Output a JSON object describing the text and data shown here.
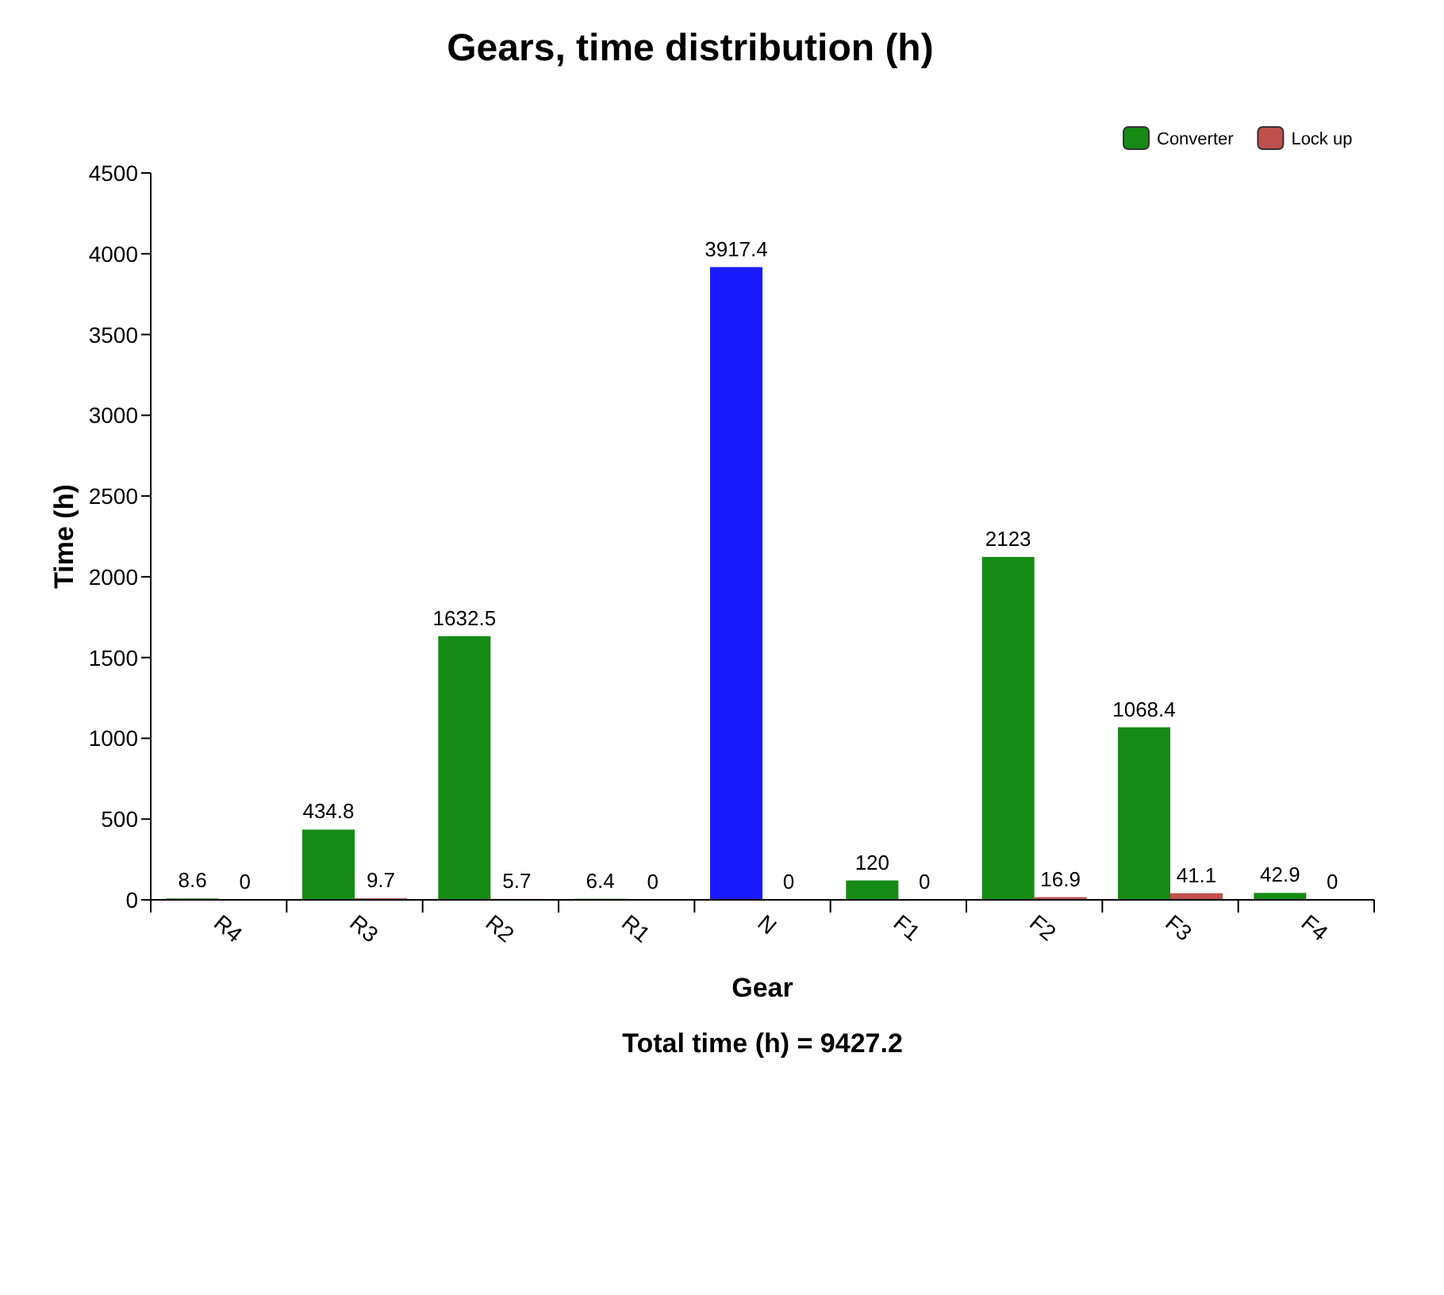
{
  "chart_data": {
    "type": "bar",
    "title": "Gears, time distribution (h)",
    "xlabel": "Gear",
    "ylabel": "Time (h)",
    "annotations": [
      "Total time (h) = 9427.2"
    ],
    "categories": [
      "R4",
      "R3",
      "R2",
      "R1",
      "N",
      "F1",
      "F2",
      "F3",
      "F4"
    ],
    "series": [
      {
        "name": "Converter",
        "color": "#158a15",
        "colors": [
          "#158a15",
          "#158a15",
          "#158a15",
          "#158a15",
          "#1a1aff",
          "#158a15",
          "#158a15",
          "#158a15",
          "#158a15"
        ],
        "values": [
          8.6,
          434.8,
          1632.5,
          6.4,
          3917.4,
          120,
          2123,
          1068.4,
          42.9
        ]
      },
      {
        "name": "Lock up",
        "color": "#c0504d",
        "values": [
          0,
          9.7,
          5.7,
          0,
          0,
          0,
          16.9,
          41.1,
          0
        ]
      }
    ],
    "ylim": [
      0,
      4500
    ],
    "yticks": [
      0,
      500,
      1000,
      1500,
      2000,
      2500,
      3000,
      3500,
      4000,
      4500
    ],
    "data_labels": true,
    "grid": false,
    "legend": "top right"
  }
}
